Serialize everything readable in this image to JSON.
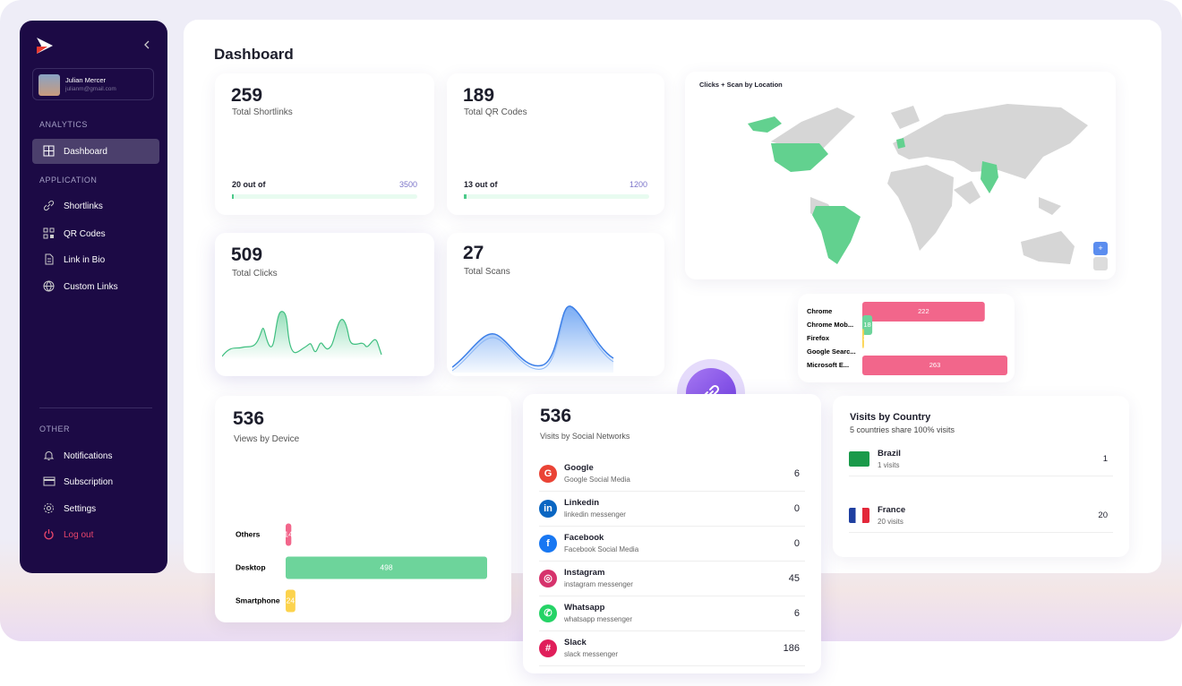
{
  "sidebar": {
    "user": {
      "name": "Julian Mercer",
      "email": "julianm@gmail.com"
    },
    "sections": [
      {
        "title": "ANALYTICS",
        "items": [
          "Dashboard"
        ]
      },
      {
        "title": "APPLICATION",
        "items": [
          "Shortlinks",
          "QR Codes",
          "Link in Bio",
          "Custom Links"
        ]
      },
      {
        "title": "OTHER",
        "items": [
          "Notifications",
          "Subscription",
          "Settings",
          "Log out"
        ]
      }
    ]
  },
  "header": {
    "title": "Dashboard"
  },
  "stats": [
    {
      "value": 259,
      "label": "Total Shortlinks",
      "usage": "20 out of",
      "limit": 3500
    },
    {
      "value": 189,
      "label": "Total QR Codes",
      "usage": "13 out of",
      "limit": 1200
    },
    {
      "value": 509,
      "label": "Total Clicks"
    },
    {
      "value": 27,
      "label": "Total Scans"
    }
  ],
  "map": {
    "title": "Clicks + Scan by Location"
  },
  "browser_chart": {
    "type": "bar",
    "categories": [
      "Chrome",
      "Chrome Mob...",
      "Firefox",
      "Google Searc...",
      "Microsoft E..."
    ],
    "values": [
      222,
      18,
      3,
      0,
      263
    ],
    "colors": [
      "#f2668b",
      "#6dd49b",
      "#fcd34d",
      "#8aa4f0",
      "#f2668b"
    ]
  },
  "device_chart": {
    "type": "bar",
    "total": 536,
    "title": "Views by Device",
    "categories": [
      "Others",
      "Desktop",
      "Smartphone"
    ],
    "values": [
      14,
      498,
      24
    ],
    "colors": [
      "#f2668b",
      "#6dd49b",
      "#fcd34d"
    ]
  },
  "social": {
    "total": 536,
    "title": "Visits by Social Networks",
    "rows": [
      {
        "name": "Google",
        "sub": "Google Social Media",
        "value": 6
      },
      {
        "name": "Linkedin",
        "sub": "linkedin messenger",
        "value": 0
      },
      {
        "name": "Facebook",
        "sub": "Facebook Social Media",
        "value": 0
      },
      {
        "name": "Instagram",
        "sub": "instagram messenger",
        "value": 45
      },
      {
        "name": "Whatsapp",
        "sub": "whatsapp messenger",
        "value": 6
      },
      {
        "name": "Slack",
        "sub": "slack messenger",
        "value": 186
      }
    ]
  },
  "countries": {
    "title": "Visits by Country",
    "subtitle": "5 countries share 100% visits",
    "rows": [
      {
        "name": "Brazil",
        "sub": "1 visits",
        "value": 1
      },
      {
        "name": "France",
        "sub": "20 visits",
        "value": 20
      }
    ]
  }
}
